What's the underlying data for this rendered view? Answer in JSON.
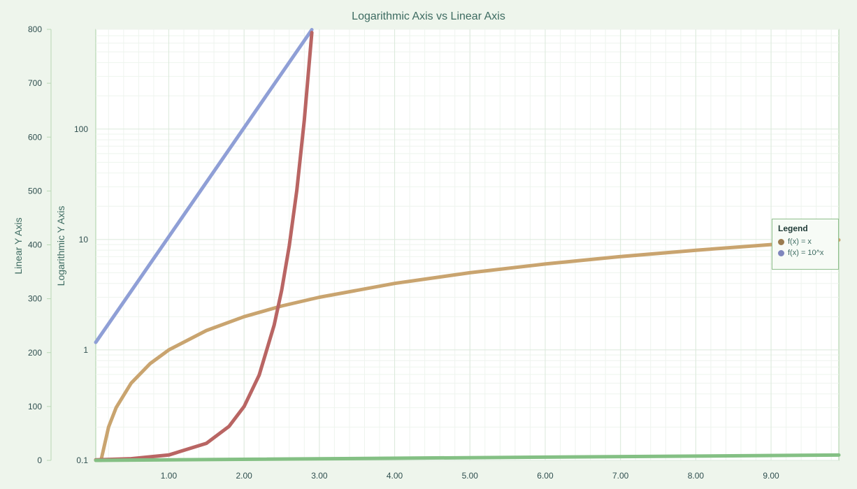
{
  "chart_data": {
    "type": "line",
    "title": "Logarithmic Axis vs Linear Axis",
    "x_axis": {
      "ticks": [
        "1.00",
        "2.00",
        "3.00",
        "4.00",
        "5.00",
        "6.00",
        "7.00",
        "8.00",
        "9.00"
      ],
      "range": [
        0.03,
        9.9
      ]
    },
    "y_left_linear": {
      "label": "Linear Y Axis",
      "ticks": [
        "0",
        "100",
        "200",
        "300",
        "400",
        "500",
        "600",
        "700",
        "800"
      ],
      "range": [
        0,
        800
      ]
    },
    "y_left_log": {
      "label": "Logarithmic Y Axis",
      "ticks": [
        "0.1",
        "1",
        "10",
        "100"
      ],
      "range": [
        0.1,
        800
      ],
      "scale": "log"
    },
    "grid": true,
    "legend": {
      "title": "Legend",
      "placement": "right",
      "items": [
        {
          "label": "f(x) = x",
          "color": "#9a7b4f"
        },
        {
          "label": "f(x) = 10^x",
          "color": "#7f86bd"
        }
      ]
    },
    "series": [
      {
        "axis": "log",
        "color": "#8f9fd6",
        "x": [
          0.03,
          2.9
        ],
        "y": [
          1.17,
          794
        ]
      },
      {
        "axis": "log",
        "color": "#c9a46f",
        "x": [
          0.03,
          0.1,
          0.2,
          0.3,
          0.5,
          0.75,
          1,
          1.5,
          2,
          2.5,
          3,
          4,
          5,
          6,
          7,
          8,
          9,
          9.9
        ],
        "y": [
          0.1,
          0.1,
          0.2,
          0.3,
          0.5,
          0.75,
          1,
          1.5,
          2,
          2.5,
          3,
          4,
          5,
          6,
          7,
          8,
          9,
          9.9
        ]
      },
      {
        "axis": "linear",
        "color": "#b96563",
        "x": [
          0.03,
          0.5,
          1,
          1.5,
          1.8,
          2,
          2.2,
          2.4,
          2.5,
          2.6,
          2.7,
          2.8,
          2.9
        ],
        "y": [
          1.07,
          3.16,
          10,
          31.6,
          63,
          100,
          158,
          251,
          316,
          398,
          501,
          631,
          794
        ]
      },
      {
        "axis": "linear",
        "color": "#84c084",
        "x": [
          0.03,
          9.9
        ],
        "y": [
          0.03,
          9.9
        ]
      }
    ]
  }
}
